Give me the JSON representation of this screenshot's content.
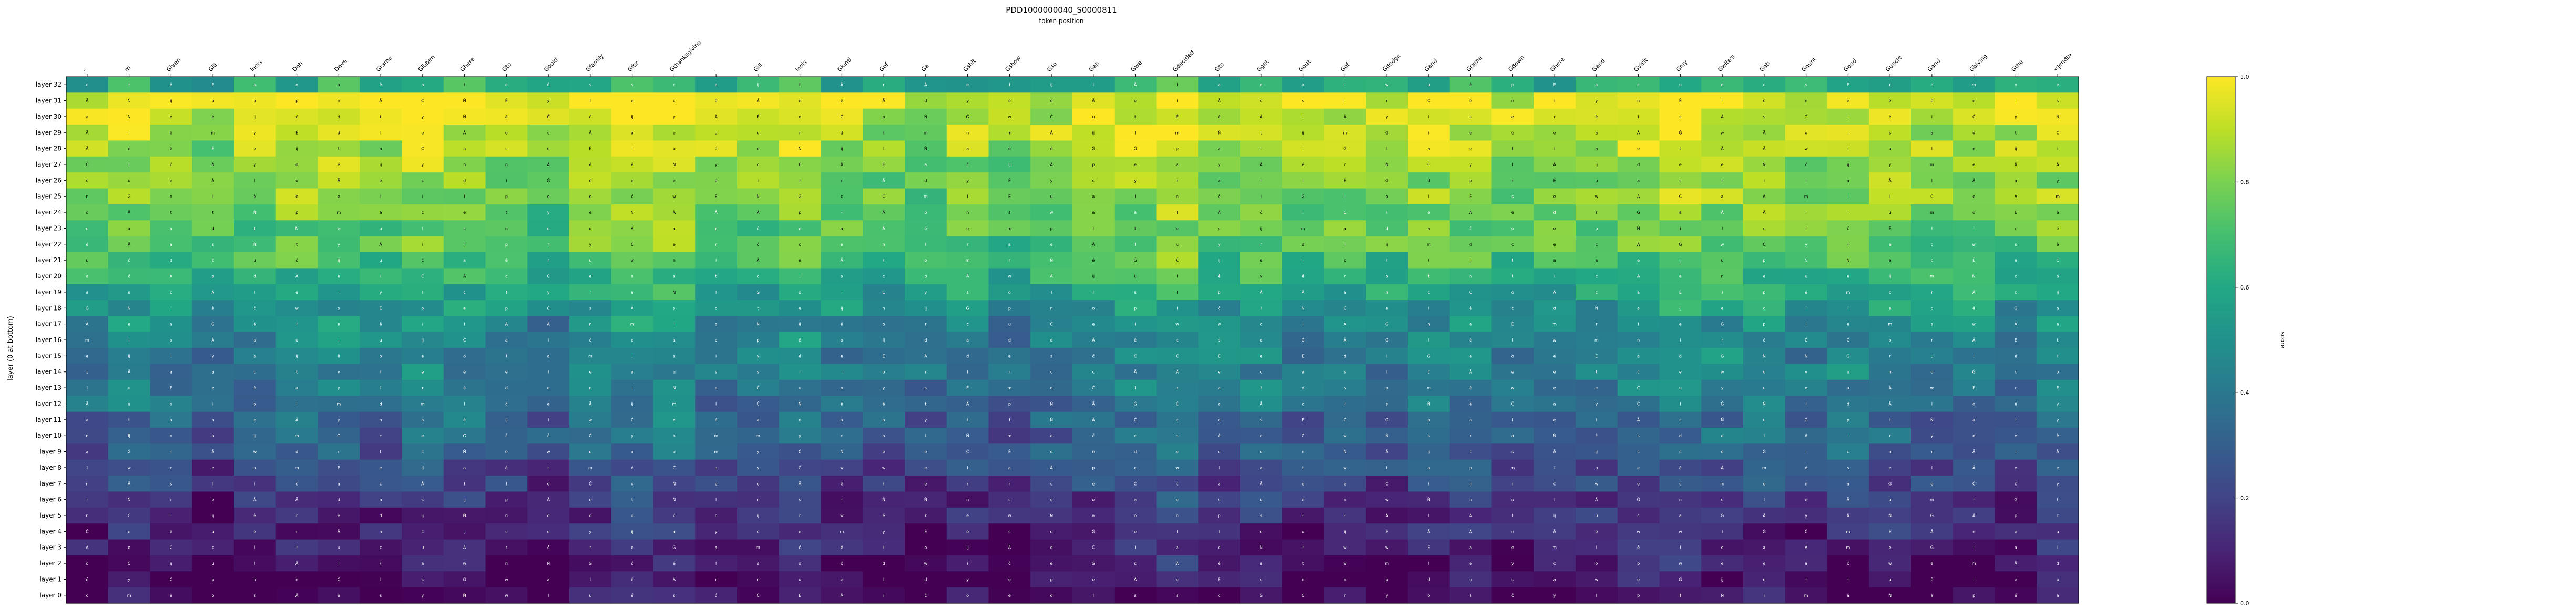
{
  "chart_data": {
    "type": "heatmap",
    "title": "PDD1000000040_S0000811",
    "xlabel": "token position",
    "ylabel": "layer (0 at bottom)",
    "colorbar_label": "score",
    "colorbar_ticks": [
      "0.0",
      "0.2",
      "0.4",
      "0.6",
      "0.8",
      "1.0"
    ],
    "value_range": [
      0,
      1
    ],
    "colormap": [
      "#440154",
      "#482475",
      "#414487",
      "#355f8d",
      "#2a788e",
      "#21918c",
      "#22a884",
      "#44bf70",
      "#7ad151",
      "#bddf26",
      "#fde725"
    ],
    "grid": false,
    "tokens": [
      "-",
      "m",
      "Given",
      "Gill",
      "inois",
      "Dah",
      "Dave",
      "Grame",
      "Gibben",
      "Ghere",
      "Gto",
      "Gould",
      "Gfamily",
      "Gfor",
      "Gthanksgiving",
      ".",
      "Gill",
      "inois",
      "Gkind",
      "Gof",
      "Ga",
      "Gshit",
      "Gshow",
      "Gso",
      "Gah",
      "Gwe",
      "Gdecided",
      "Gto",
      "Gget",
      "Gout",
      "Gof",
      "Gdodge",
      "Gand",
      "Grame",
      "Gdown",
      "Ghere",
      "Gand",
      "Gvisit",
      "Gmy",
      "Gwife's",
      "Gah",
      "Gaunt",
      "Gand",
      "Guncle",
      "Gand",
      "Gblying",
      "Gthe",
      "<|endl>"
    ],
    "layers": [
      "layer 32",
      "layer 31",
      "layer 30",
      "layer 29",
      "layer 28",
      "layer 27",
      "layer 26",
      "layer 25",
      "layer 24",
      "layer 23",
      "layer 22",
      "layer 21",
      "layer 20",
      "layer 19",
      "layer 18",
      "layer 17",
      "layer 16",
      "layer 15",
      "layer 14",
      "layer 13",
      "layer 12",
      "layer 11",
      "layer 10",
      "layer 9",
      "layer 8",
      "layer 7",
      "layer 6",
      "layer 5",
      "layer 4",
      "layer 3",
      "layer 2",
      "layer 1",
      "layer 0"
    ],
    "row_profile": [
      0.6,
      0.94,
      0.9,
      0.88,
      0.86,
      0.82,
      0.8,
      0.8,
      0.76,
      0.74,
      0.72,
      0.68,
      0.62,
      0.56,
      0.5,
      0.46,
      0.44,
      0.42,
      0.4,
      0.38,
      0.35,
      0.32,
      0.3,
      0.27,
      0.22,
      0.18,
      0.14,
      0.1,
      0.08,
      0.06,
      0.04,
      0.02,
      0.01
    ],
    "column_bias": [
      0.0,
      0.05,
      0.0,
      -0.05,
      0.0,
      0.03,
      0.05,
      0.0,
      0.05,
      0.04,
      0.0,
      -0.05,
      0.05,
      0.1,
      0.1,
      0.0,
      0.0,
      0.05,
      0.0,
      -0.03,
      -0.05,
      0.0,
      -0.05,
      0.0,
      0.02,
      0.05,
      0.1,
      0.0,
      0.05,
      -0.02,
      0.0,
      0.0,
      0.03,
      0.05,
      0.0,
      0.0,
      0.02,
      0.05,
      0.08,
      0.05,
      0.05,
      0.0,
      0.05,
      0.05,
      0.0,
      0.03,
      0.0,
      0.05
    ],
    "noise_seed": 811,
    "cell_glyphs": [
      "ĉ",
      "a",
      "e",
      "a",
      "e",
      "i",
      "t",
      "o",
      "n",
      "r",
      "s",
      "Ġ",
      "Ċ",
      "m",
      "Ã",
      "ĳ",
      "Â",
      "É",
      "ê",
      "u",
      "d",
      "c",
      "l",
      "w",
      "y",
      "p",
      "é",
      "Ä",
      "Ń",
      "l",
      "ł",
      "e"
    ]
  }
}
